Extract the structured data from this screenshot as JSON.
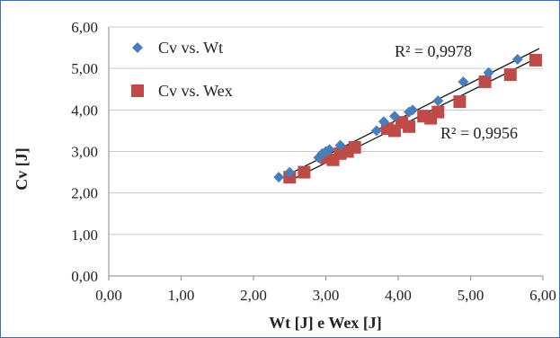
{
  "chart_data": {
    "type": "scatter",
    "xlabel": "Wt [J] e Wex [J]",
    "ylabel": "Cv [J]",
    "xlim": [
      0,
      6
    ],
    "ylim": [
      0,
      6
    ],
    "xticks": [
      "0,00",
      "1,00",
      "2,00",
      "3,00",
      "4,00",
      "5,00",
      "6,00"
    ],
    "yticks": [
      "0,00",
      "1,00",
      "2,00",
      "3,00",
      "4,00",
      "5,00",
      "6,00"
    ],
    "grid": "horizontal",
    "legend_position": "top-left",
    "series": [
      {
        "name": "Cv vs. Wt",
        "marker": "diamond",
        "color": "#4a7ebb",
        "x": [
          2.35,
          2.5,
          2.9,
          2.95,
          3.0,
          3.05,
          3.2,
          3.7,
          3.8,
          3.95,
          4.15,
          4.2,
          4.55,
          4.9,
          5.25,
          5.65
        ],
        "y": [
          2.38,
          2.5,
          2.85,
          2.95,
          3.0,
          3.05,
          3.15,
          3.5,
          3.72,
          3.85,
          3.95,
          4.0,
          4.22,
          4.68,
          4.9,
          5.22
        ],
        "trendline": {
          "x": [
            2.35,
            5.95
          ],
          "y": [
            2.33,
            5.48
          ]
        },
        "r2_label": "R² = 0,9978"
      },
      {
        "name": "Cv vs. Wex",
        "marker": "square",
        "color": "#be4b48",
        "x": [
          2.5,
          2.7,
          3.0,
          3.1,
          3.2,
          3.3,
          3.4,
          3.85,
          3.95,
          4.05,
          4.15,
          4.35,
          4.45,
          4.55,
          4.85,
          5.2,
          5.55,
          5.9
        ],
        "y": [
          2.38,
          2.5,
          2.85,
          2.8,
          2.95,
          3.0,
          3.1,
          3.55,
          3.5,
          3.7,
          3.6,
          3.85,
          3.8,
          3.95,
          4.2,
          4.68,
          4.85,
          5.2
        ],
        "trendline": {
          "x": [
            2.45,
            5.95
          ],
          "y": [
            2.25,
            5.28
          ]
        },
        "r2_label": "R² = 0,9956"
      }
    ]
  }
}
